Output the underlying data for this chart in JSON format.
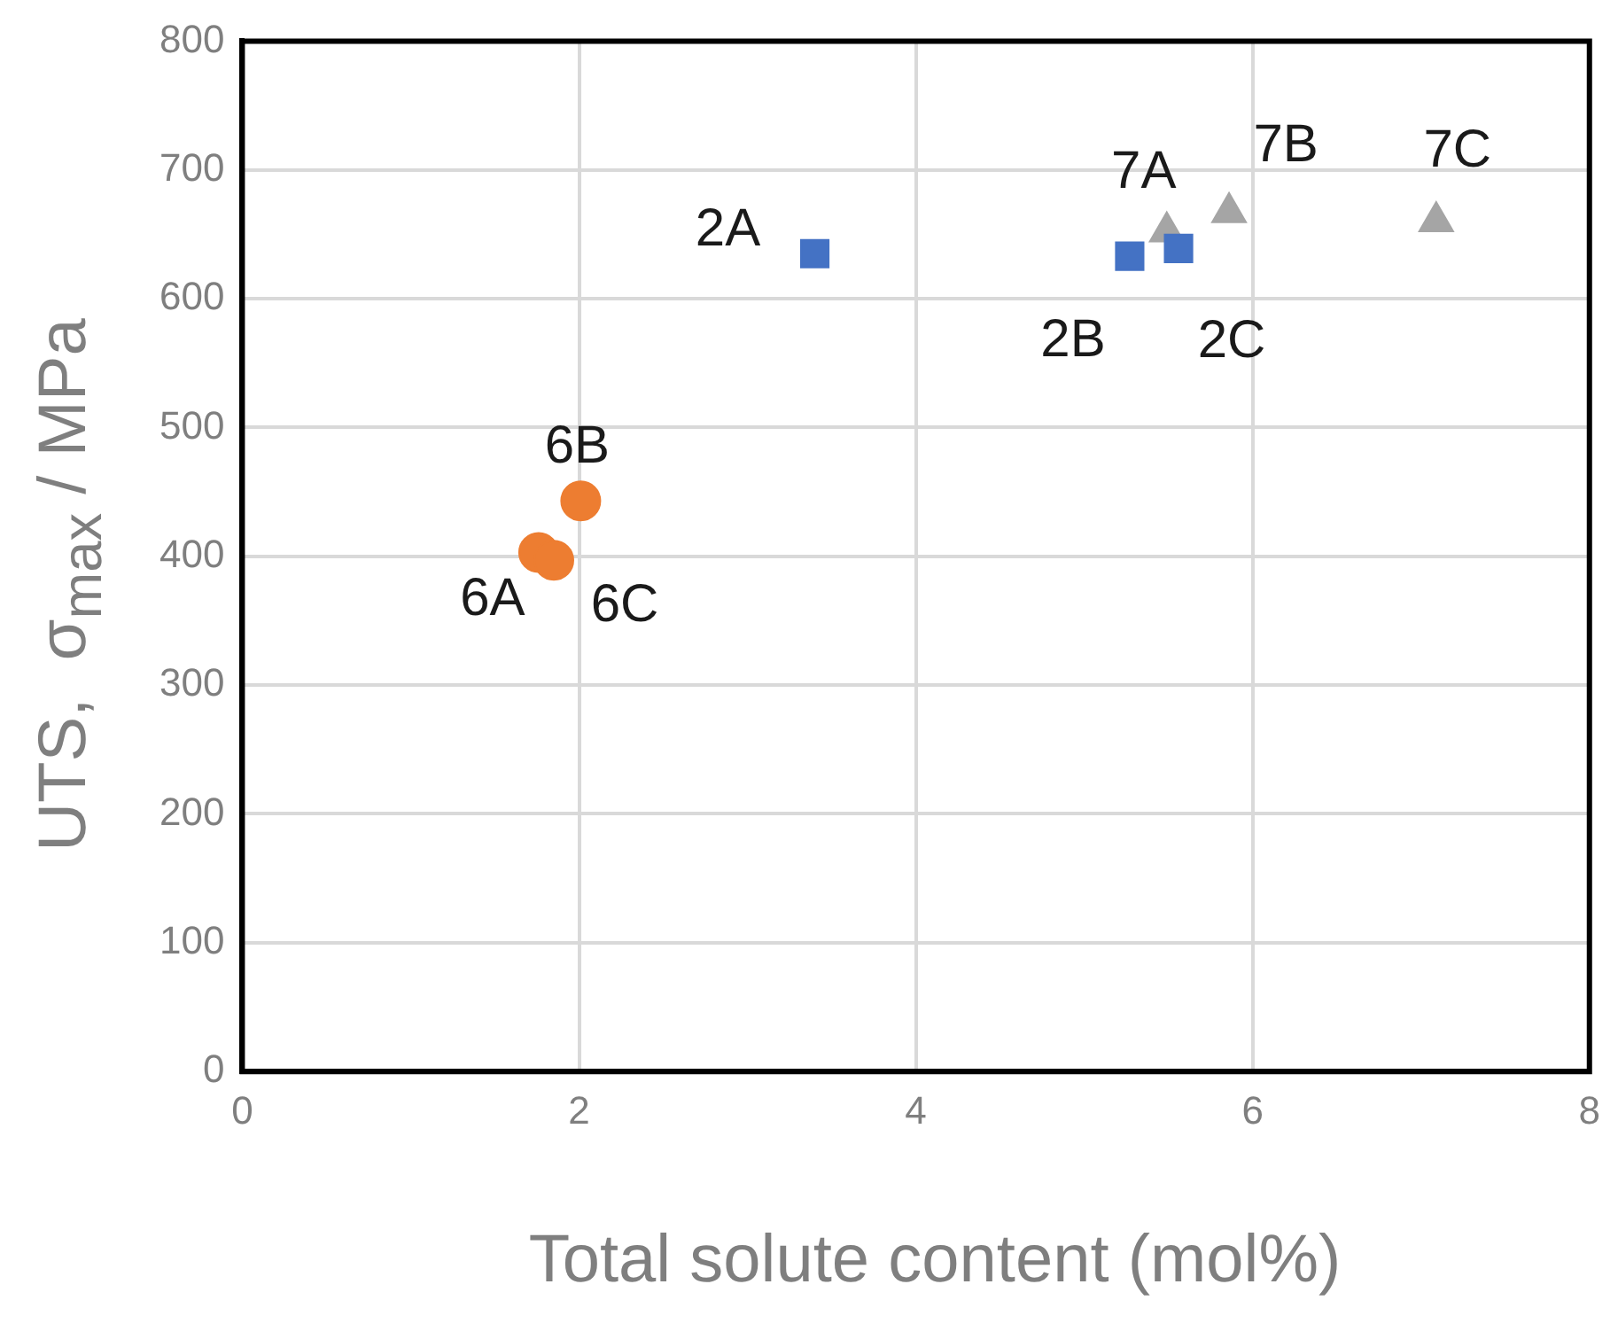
{
  "chart_data": {
    "type": "scatter",
    "xlabel": "Total solute content (mol%)",
    "ylabel": "UTS,  σ$_{max}$ / MPa",
    "xlim": [
      0,
      8
    ],
    "xticks": [
      0,
      2,
      4,
      6,
      8
    ],
    "ylim": [
      0,
      800
    ],
    "yticks": [
      0,
      100,
      200,
      300,
      400,
      500,
      600,
      700,
      800
    ],
    "grid": true,
    "legend": false,
    "series": [
      {
        "color": "#4472c4",
        "marker": "square",
        "x": [
          3.4,
          5.27,
          5.56
        ],
        "values": [
          635,
          633,
          639
        ]
      },
      {
        "color": "#ed7d31",
        "marker": "circle",
        "x": [
          1.76,
          2.01,
          1.85
        ],
        "values": [
          403,
          443,
          397
        ]
      },
      {
        "color": "#a5a5a5",
        "marker": "triangle",
        "x": [
          5.49,
          5.86,
          7.09
        ],
        "values": [
          652,
          667,
          660
        ]
      }
    ],
    "annotations": [
      {
        "text": "2A",
        "x": 3.4,
        "y": 635
      },
      {
        "text": "2B",
        "x": 5.27,
        "y": 633
      },
      {
        "text": "2C",
        "x": 5.56,
        "y": 639
      },
      {
        "text": "6A",
        "x": 1.76,
        "y": 403
      },
      {
        "text": "6B",
        "x": 2.01,
        "y": 443
      },
      {
        "text": "6C",
        "x": 1.85,
        "y": 397
      },
      {
        "text": "7A",
        "x": 5.49,
        "y": 652
      },
      {
        "text": "7B",
        "x": 5.86,
        "y": 667
      },
      {
        "text": "7C",
        "x": 7.09,
        "y": 660
      }
    ]
  }
}
